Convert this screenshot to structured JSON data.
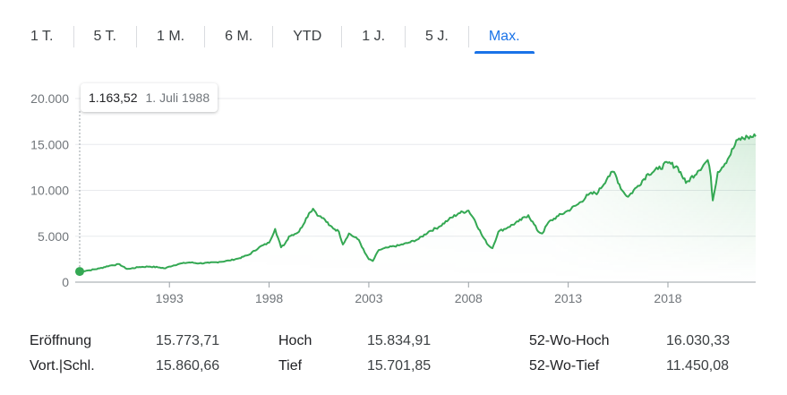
{
  "tabs": [
    {
      "label": "1 T.",
      "active": false
    },
    {
      "label": "5 T.",
      "active": false
    },
    {
      "label": "1 M.",
      "active": false
    },
    {
      "label": "6 M.",
      "active": false
    },
    {
      "label": "YTD",
      "active": false
    },
    {
      "label": "1 J.",
      "active": false
    },
    {
      "label": "5 J.",
      "active": false
    },
    {
      "label": "Max.",
      "active": true
    }
  ],
  "tooltip": {
    "value": "1.163,52",
    "date": "1. Juli 1988"
  },
  "colors": {
    "line": "#34a853",
    "accent": "#1a73e8",
    "grid": "#e8eaed",
    "axis": "#70757a"
  },
  "chart_data": {
    "type": "line",
    "ylim": [
      0,
      20000
    ],
    "yticks": [
      0,
      5000,
      10000,
      15000,
      20000
    ],
    "ytick_labels": [
      "0",
      "5.000",
      "10.000",
      "15.000",
      "20.000"
    ],
    "xlim": [
      1988.5,
      2022.4
    ],
    "xticks": [
      1993,
      1998,
      2003,
      2008,
      2013,
      2018
    ],
    "xtick_labels": [
      "1993",
      "1998",
      "2003",
      "2008",
      "2013",
      "2018"
    ],
    "grid": true,
    "series": [
      {
        "x": [
          1988.5,
          1989.0,
          1989.5,
          1990.0,
          1990.5,
          1990.8,
          1991.0,
          1991.5,
          1992.0,
          1992.5,
          1992.8,
          1993.0,
          1993.5,
          1994.0,
          1994.5,
          1995.0,
          1995.5,
          1996.0,
          1996.5,
          1997.0,
          1997.5,
          1998.0,
          1998.3,
          1998.6,
          1998.8,
          1999.0,
          1999.5,
          2000.0,
          2000.2,
          2000.5,
          2000.8,
          2001.0,
          2001.5,
          2001.7,
          2002.0,
          2002.5,
          2002.8,
          2003.0,
          2003.2,
          2003.5,
          2004.0,
          2004.5,
          2005.0,
          2005.5,
          2006.0,
          2006.5,
          2007.0,
          2007.5,
          2008.0,
          2008.3,
          2008.7,
          2009.0,
          2009.2,
          2009.5,
          2010.0,
          2010.5,
          2011.0,
          2011.5,
          2011.7,
          2012.0,
          2012.5,
          2013.0,
          2013.5,
          2014.0,
          2014.5,
          2015.0,
          2015.3,
          2015.7,
          2016.0,
          2016.5,
          2017.0,
          2017.5,
          2018.0,
          2018.5,
          2018.9,
          2019.0,
          2019.5,
          2020.0,
          2020.15,
          2020.25,
          2020.5,
          2021.0,
          2021.5,
          2022.0,
          2022.4
        ],
        "values": [
          1163.52,
          1300,
          1500,
          1800,
          1950,
          1500,
          1450,
          1650,
          1700,
          1600,
          1500,
          1700,
          2000,
          2150,
          2050,
          2100,
          2200,
          2350,
          2600,
          3000,
          3800,
          4300,
          5800,
          3800,
          4200,
          5000,
          5500,
          7500,
          8000,
          7200,
          6800,
          6200,
          5500,
          4100,
          5300,
          4600,
          3200,
          2500,
          2300,
          3500,
          3800,
          4000,
          4300,
          4700,
          5500,
          6000,
          6800,
          7500,
          7800,
          6800,
          5000,
          4000,
          3700,
          5500,
          6000,
          6600,
          7300,
          5500,
          5300,
          6500,
          7200,
          7800,
          8500,
          9500,
          9800,
          11500,
          12000,
          10000,
          9300,
          10500,
          11800,
          12300,
          13000,
          12500,
          10800,
          11000,
          12100,
          13300,
          11500,
          8900,
          12000,
          13400,
          15500,
          15800,
          15860.66
        ]
      }
    ]
  },
  "stats": [
    {
      "label": "Eröffnung",
      "value": "15.773,71"
    },
    {
      "label": "Vort.|Schl.",
      "value": "15.860,66"
    },
    {
      "label": "Hoch",
      "value": "15.834,91"
    },
    {
      "label": "Tief",
      "value": "15.701,85"
    },
    {
      "label": "52-Wo-Hoch",
      "value": "16.030,33"
    },
    {
      "label": "52-Wo-Tief",
      "value": "11.450,08"
    }
  ]
}
